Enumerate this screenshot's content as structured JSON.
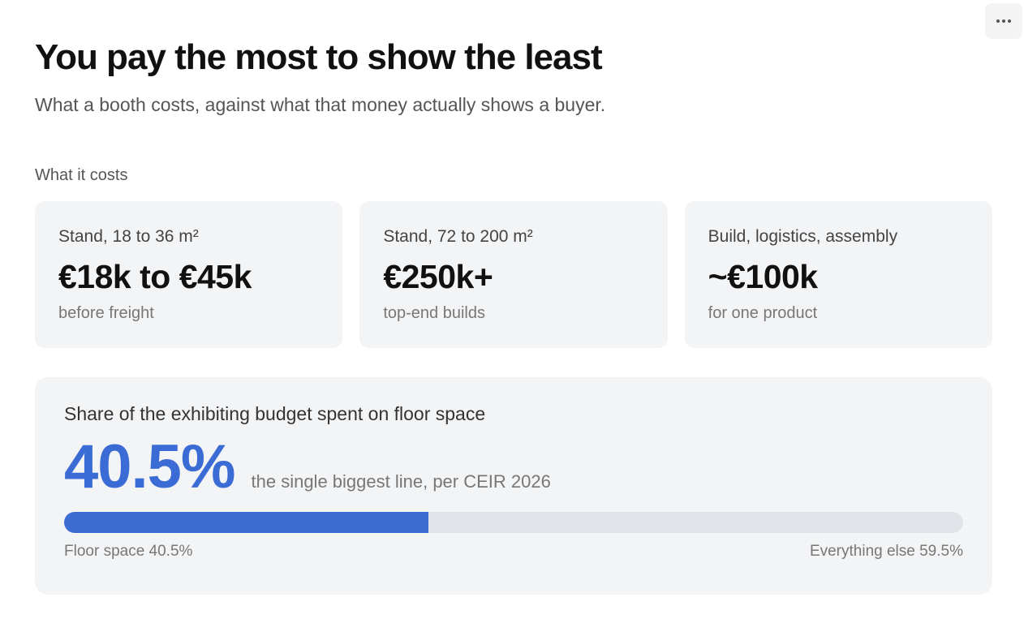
{
  "header": {
    "title": "You pay the most to show the least",
    "subtitle": "What a booth costs, against what that money actually shows a buyer.",
    "more_icon": "more-horizontal-icon"
  },
  "costs": {
    "section_label": "What it costs",
    "cards": [
      {
        "label": "Stand, 18 to 36 m²",
        "value": "€18k to €45k",
        "note": "before freight"
      },
      {
        "label": "Stand, 72 to 200 m²",
        "value": "€250k+",
        "note": "top-end builds"
      },
      {
        "label": "Build, logistics, assembly",
        "value": "~€100k",
        "note": "for one product"
      }
    ]
  },
  "share": {
    "title": "Share of the exhibiting budget spent on floor space",
    "value": "40.5%",
    "note": "the single biggest line, per CEIR 2026",
    "fraction": 0.405,
    "left_label": "Floor space 40.5%",
    "right_label": "Everything else 59.5%",
    "accent_color": "#3d6cd2",
    "track_color": "#e2e3e8"
  }
}
